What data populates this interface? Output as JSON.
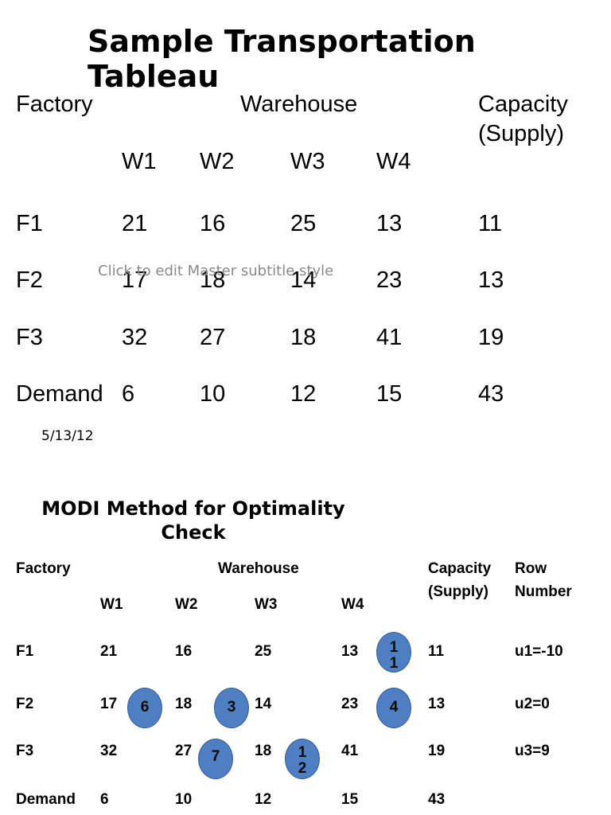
{
  "slide1": {
    "title": "Sample Transportation Tableau",
    "header_factory": "Factory",
    "header_warehouse": "Warehouse",
    "header_capacity_line1": "Capacity",
    "header_capacity_line2": "(Supply)",
    "columns": [
      "W1",
      "W2",
      "W3",
      "W4"
    ],
    "rows": [
      {
        "label": "F1",
        "costs": [
          "21",
          "16",
          "25",
          "13"
        ],
        "capacity": "11"
      },
      {
        "label": "F2",
        "costs": [
          "17",
          "18",
          "14",
          "23"
        ],
        "capacity": "13"
      },
      {
        "label": "F3",
        "costs": [
          "32",
          "27",
          "18",
          "41"
        ],
        "capacity": "19"
      },
      {
        "label": "Demand",
        "costs": [
          "6",
          "10",
          "12",
          "15"
        ],
        "capacity": "43"
      }
    ],
    "subtitle_placeholder": "Click to edit Master subtitle style",
    "date": "5/13/12"
  },
  "slide2": {
    "title": "MODI Method for Optimality Check",
    "header_factory": "Factory",
    "header_warehouse": "Warehouse",
    "header_capacity_line1": "Capacity",
    "header_capacity_line2": "(Supply)",
    "header_row_number_line1": "Row",
    "header_row_number_line2": "Number",
    "columns": [
      "W1",
      "W2",
      "W3",
      "W4"
    ],
    "rows": [
      {
        "label": "F1",
        "costs": [
          "21",
          "16",
          "25",
          "13"
        ],
        "capacity": "11",
        "row_number": "u1=-10"
      },
      {
        "label": "F2",
        "costs": [
          "17",
          "18",
          "14",
          "23"
        ],
        "capacity": "13",
        "row_number": "u2=0"
      },
      {
        "label": "F3",
        "costs": [
          "32",
          "27",
          "18",
          "41"
        ],
        "capacity": "19",
        "row_number": "u3=9"
      },
      {
        "label": "Demand",
        "costs": [
          "6",
          "10",
          "12",
          "15"
        ],
        "capacity": "43"
      }
    ],
    "allocations": [
      {
        "row": "F1",
        "column": "W4",
        "value": "11"
      },
      {
        "row": "F2",
        "column": "W1",
        "value": "6"
      },
      {
        "row": "F2",
        "column": "W2",
        "value": "3"
      },
      {
        "row": "F2",
        "column": "W4",
        "value": "4"
      },
      {
        "row": "F3",
        "column": "W2",
        "value": "7"
      },
      {
        "row": "F3",
        "column": "W3",
        "value": "12"
      }
    ],
    "allocation_color": "#4f7fc3"
  }
}
